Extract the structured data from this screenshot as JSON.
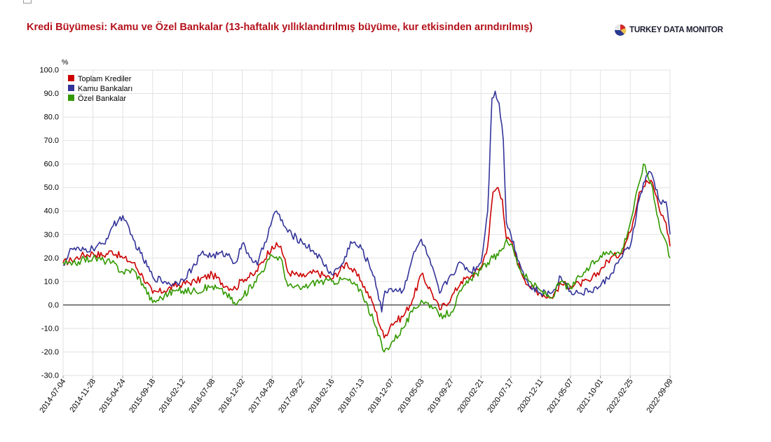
{
  "header": {
    "title": "Kredi Büyümesi: Kamu ve Özel Bankalar (13-haftalık yıllıklandırılmış büyüme, kur etkisinden arındırılmış)",
    "brand": "TURKEY DATA MONITOR",
    "brand_icon": "pie-logo-icon"
  },
  "chart_data": {
    "type": "line",
    "title": "Kredi Büyümesi: Kamu ve Özel Bankalar (13-haftalık yıllıklandırılmış büyüme, kur etkisinden arındırılmış)",
    "ylabel": "%",
    "xlabel": "",
    "ylim": [
      -30,
      100
    ],
    "yticks": [
      "100.0",
      "90.0",
      "80.0",
      "70.0",
      "60.0",
      "50.0",
      "40.0",
      "30.0",
      "20.0",
      "10.0",
      "0.0",
      "-10.0",
      "-20.0",
      "-30.0"
    ],
    "x_tick_labels": [
      "2014-07-04",
      "2014-11-28",
      "2015-04-24",
      "2015-09-18",
      "2016-02-12",
      "2016-07-08",
      "2016-12-02",
      "2017-04-28",
      "2017-09-22",
      "2018-02-16",
      "2018-07-13",
      "2018-12-07",
      "2019-05-03",
      "2019-09-27",
      "2020-02-21",
      "2020-07-17",
      "2020-12-11",
      "2021-05-07",
      "2021-10-01",
      "2022-02-25",
      "2022-09-09"
    ],
    "x_range": [
      "2014-07-04",
      "2022-09-09"
    ],
    "grid": true,
    "legend_position": "top-left",
    "zero_line": true,
    "colors": {
      "toplam": "#cc0000",
      "kamu": "#333399",
      "ozel": "#339900"
    },
    "series": [
      {
        "name": "Toplam Krediler",
        "color": "#cc0000",
        "points": [
          [
            "2014-07-04",
            18
          ],
          [
            "2014-08-15",
            19
          ],
          [
            "2014-10-01",
            21
          ],
          [
            "2014-11-28",
            22
          ],
          [
            "2015-01-20",
            21
          ],
          [
            "2015-03-01",
            23
          ],
          [
            "2015-04-24",
            20
          ],
          [
            "2015-06-15",
            18
          ],
          [
            "2015-08-01",
            12
          ],
          [
            "2015-09-18",
            5
          ],
          [
            "2015-11-15",
            6
          ],
          [
            "2016-01-01",
            8
          ],
          [
            "2016-02-12",
            9
          ],
          [
            "2016-04-15",
            10
          ],
          [
            "2016-07-08",
            13
          ],
          [
            "2016-09-15",
            8
          ],
          [
            "2016-10-31",
            7
          ],
          [
            "2016-12-02",
            11
          ],
          [
            "2017-02-01",
            13
          ],
          [
            "2017-04-28",
            25
          ],
          [
            "2017-06-10",
            25
          ],
          [
            "2017-07-15",
            14
          ],
          [
            "2017-09-22",
            12
          ],
          [
            "2017-12-01",
            14
          ],
          [
            "2018-02-16",
            11
          ],
          [
            "2018-05-01",
            18
          ],
          [
            "2018-07-13",
            10
          ],
          [
            "2018-09-10",
            0
          ],
          [
            "2018-11-01",
            -14
          ],
          [
            "2018-12-07",
            -8
          ],
          [
            "2019-02-01",
            -5
          ],
          [
            "2019-03-20",
            2
          ],
          [
            "2019-05-03",
            13
          ],
          [
            "2019-06-20",
            6
          ],
          [
            "2019-08-01",
            -2
          ],
          [
            "2019-09-27",
            3
          ],
          [
            "2019-11-15",
            10
          ],
          [
            "2020-01-01",
            12
          ],
          [
            "2020-02-21",
            16
          ],
          [
            "2020-03-25",
            25
          ],
          [
            "2020-04-20",
            48
          ],
          [
            "2020-05-15",
            50
          ],
          [
            "2020-06-05",
            45
          ],
          [
            "2020-06-25",
            28
          ],
          [
            "2020-07-17",
            27
          ],
          [
            "2020-09-01",
            15
          ],
          [
            "2020-10-15",
            8
          ],
          [
            "2020-12-11",
            5
          ],
          [
            "2021-02-01",
            3
          ],
          [
            "2021-03-20",
            9
          ],
          [
            "2021-05-07",
            8
          ],
          [
            "2021-06-20",
            9
          ],
          [
            "2021-08-10",
            10
          ],
          [
            "2021-10-01",
            15
          ],
          [
            "2021-11-20",
            20
          ],
          [
            "2022-01-10",
            22
          ],
          [
            "2022-02-25",
            31
          ],
          [
            "2022-04-10",
            48
          ],
          [
            "2022-05-15",
            53
          ],
          [
            "2022-06-15",
            52
          ],
          [
            "2022-07-20",
            40
          ],
          [
            "2022-08-20",
            35
          ],
          [
            "2022-09-09",
            25
          ]
        ]
      },
      {
        "name": "Kamu Bankaları",
        "color": "#333399",
        "points": [
          [
            "2014-07-04",
            17
          ],
          [
            "2014-08-15",
            24
          ],
          [
            "2014-10-01",
            23
          ],
          [
            "2014-11-28",
            24
          ],
          [
            "2015-01-20",
            26
          ],
          [
            "2015-03-01",
            33
          ],
          [
            "2015-04-24",
            38
          ],
          [
            "2015-06-01",
            30
          ],
          [
            "2015-07-20",
            22
          ],
          [
            "2015-09-18",
            12
          ],
          [
            "2015-11-15",
            10
          ],
          [
            "2016-01-01",
            9
          ],
          [
            "2016-02-12",
            11
          ],
          [
            "2016-04-15",
            17
          ],
          [
            "2016-05-15",
            22
          ],
          [
            "2016-07-08",
            21
          ],
          [
            "2016-09-15",
            22
          ],
          [
            "2016-10-31",
            18
          ],
          [
            "2016-12-02",
            26
          ],
          [
            "2017-01-15",
            20
          ],
          [
            "2017-02-15",
            17
          ],
          [
            "2017-04-28",
            36
          ],
          [
            "2017-05-20",
            40
          ],
          [
            "2017-07-15",
            31
          ],
          [
            "2017-09-22",
            27
          ],
          [
            "2017-12-01",
            22
          ],
          [
            "2018-02-16",
            13
          ],
          [
            "2018-04-15",
            18
          ],
          [
            "2018-05-20",
            27
          ],
          [
            "2018-07-13",
            24
          ],
          [
            "2018-09-15",
            12
          ],
          [
            "2018-10-20",
            -3
          ],
          [
            "2018-11-05",
            6
          ],
          [
            "2018-12-07",
            7
          ],
          [
            "2019-02-01",
            6
          ],
          [
            "2019-03-20",
            20
          ],
          [
            "2019-05-03",
            28
          ],
          [
            "2019-06-20",
            17
          ],
          [
            "2019-08-01",
            5
          ],
          [
            "2019-09-27",
            13
          ],
          [
            "2019-11-15",
            18
          ],
          [
            "2020-01-01",
            14
          ],
          [
            "2020-02-21",
            18
          ],
          [
            "2020-03-25",
            40
          ],
          [
            "2020-04-15",
            88
          ],
          [
            "2020-05-01",
            91
          ],
          [
            "2020-05-20",
            86
          ],
          [
            "2020-06-10",
            70
          ],
          [
            "2020-06-25",
            35
          ],
          [
            "2020-07-17",
            30
          ],
          [
            "2020-09-01",
            17
          ],
          [
            "2020-10-15",
            8
          ],
          [
            "2020-12-11",
            5
          ],
          [
            "2021-02-01",
            5
          ],
          [
            "2021-03-20",
            12
          ],
          [
            "2021-05-07",
            6
          ],
          [
            "2021-06-20",
            5
          ],
          [
            "2021-08-10",
            6
          ],
          [
            "2021-10-01",
            8
          ],
          [
            "2021-11-20",
            13
          ],
          [
            "2022-01-10",
            20
          ],
          [
            "2022-02-25",
            25
          ],
          [
            "2022-04-10",
            45
          ],
          [
            "2022-05-15",
            55
          ],
          [
            "2022-06-10",
            56
          ],
          [
            "2022-07-20",
            44
          ],
          [
            "2022-08-20",
            44
          ],
          [
            "2022-09-09",
            30
          ]
        ]
      },
      {
        "name": "Özel Bankalar",
        "color": "#339900",
        "points": [
          [
            "2014-07-04",
            18
          ],
          [
            "2014-08-15",
            17
          ],
          [
            "2014-10-01",
            19
          ],
          [
            "2014-11-28",
            20
          ],
          [
            "2015-01-20",
            19
          ],
          [
            "2015-03-01",
            18
          ],
          [
            "2015-04-24",
            14
          ],
          [
            "2015-06-15",
            15
          ],
          [
            "2015-08-01",
            9
          ],
          [
            "2015-09-18",
            1
          ],
          [
            "2015-11-15",
            4
          ],
          [
            "2016-01-01",
            6
          ],
          [
            "2016-02-12",
            6
          ],
          [
            "2016-04-15",
            6
          ],
          [
            "2016-07-08",
            8
          ],
          [
            "2016-09-15",
            5
          ],
          [
            "2016-10-31",
            0
          ],
          [
            "2016-12-02",
            3
          ],
          [
            "2017-02-01",
            10
          ],
          [
            "2017-04-28",
            21
          ],
          [
            "2017-06-10",
            20
          ],
          [
            "2017-07-15",
            8
          ],
          [
            "2017-09-22",
            7
          ],
          [
            "2017-12-01",
            10
          ],
          [
            "2018-02-16",
            10
          ],
          [
            "2018-05-01",
            11
          ],
          [
            "2018-07-13",
            6
          ],
          [
            "2018-09-10",
            -7
          ],
          [
            "2018-11-01",
            -20
          ],
          [
            "2018-12-07",
            -16
          ],
          [
            "2019-02-01",
            -10
          ],
          [
            "2019-03-20",
            -3
          ],
          [
            "2019-05-03",
            2
          ],
          [
            "2019-06-20",
            0
          ],
          [
            "2019-08-01",
            -5
          ],
          [
            "2019-09-27",
            -3
          ],
          [
            "2019-11-15",
            6
          ],
          [
            "2020-01-01",
            11
          ],
          [
            "2020-02-21",
            15
          ],
          [
            "2020-03-25",
            18
          ],
          [
            "2020-04-20",
            20
          ],
          [
            "2020-05-15",
            21
          ],
          [
            "2020-06-05",
            24
          ],
          [
            "2020-06-25",
            28
          ],
          [
            "2020-07-17",
            26
          ],
          [
            "2020-09-01",
            15
          ],
          [
            "2020-10-15",
            10
          ],
          [
            "2020-12-11",
            6
          ],
          [
            "2021-02-01",
            3
          ],
          [
            "2021-03-20",
            10
          ],
          [
            "2021-05-07",
            7
          ],
          [
            "2021-06-20",
            12
          ],
          [
            "2021-08-10",
            16
          ],
          [
            "2021-10-01",
            21
          ],
          [
            "2021-11-20",
            23
          ],
          [
            "2022-01-10",
            22
          ],
          [
            "2022-02-25",
            35
          ],
          [
            "2022-04-10",
            52
          ],
          [
            "2022-05-01",
            60
          ],
          [
            "2022-06-15",
            50
          ],
          [
            "2022-07-20",
            33
          ],
          [
            "2022-08-20",
            27
          ],
          [
            "2022-09-09",
            20
          ]
        ]
      }
    ]
  }
}
